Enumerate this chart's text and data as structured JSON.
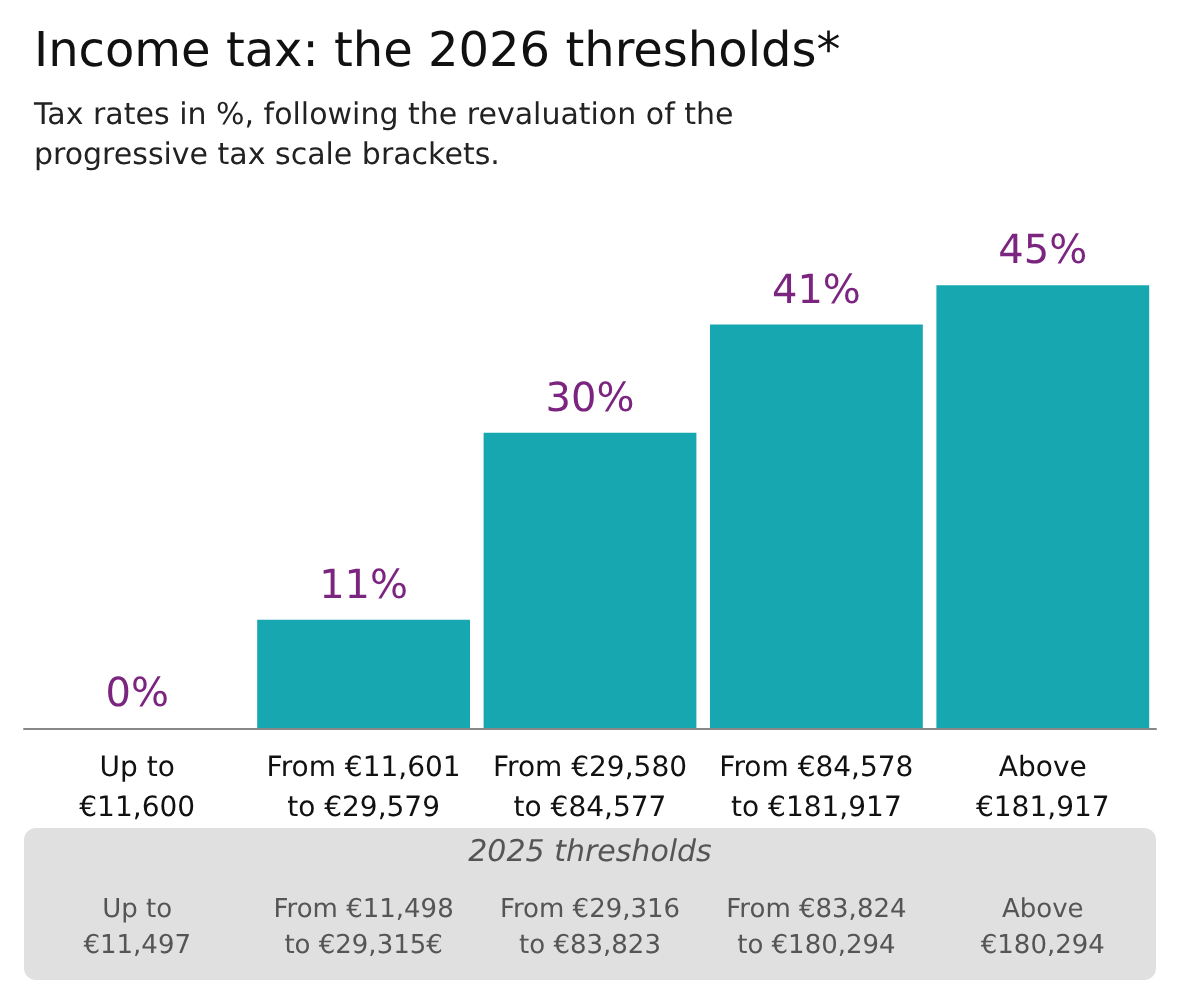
{
  "chart_data": {
    "type": "bar",
    "title": "Income tax: the 2026 thresholds*",
    "subtitle": "Tax rates in %, following the revaluation of the\nprogressive tax scale brackets.",
    "categories": [
      "Up to\n€11,600",
      "From €11,601\nto €29,579",
      "From €29,580\nto €84,577",
      "From €84,578\nto €181,917",
      "Above\n€181,917"
    ],
    "values": [
      0,
      11,
      30,
      41,
      45
    ],
    "color": "#17a7b0",
    "data_labels": true,
    "value_labels": [
      "0%",
      "11%",
      "30%",
      "41%",
      "45%"
    ],
    "annotations": [
      "2025 thresholds",
      "Up to\n€11,497",
      "From €11,498\nto €29,315€",
      "From €29,316\nto €83,823",
      "From €83,824\nto €180,294",
      "Above\n€180,294"
    ]
  }
}
